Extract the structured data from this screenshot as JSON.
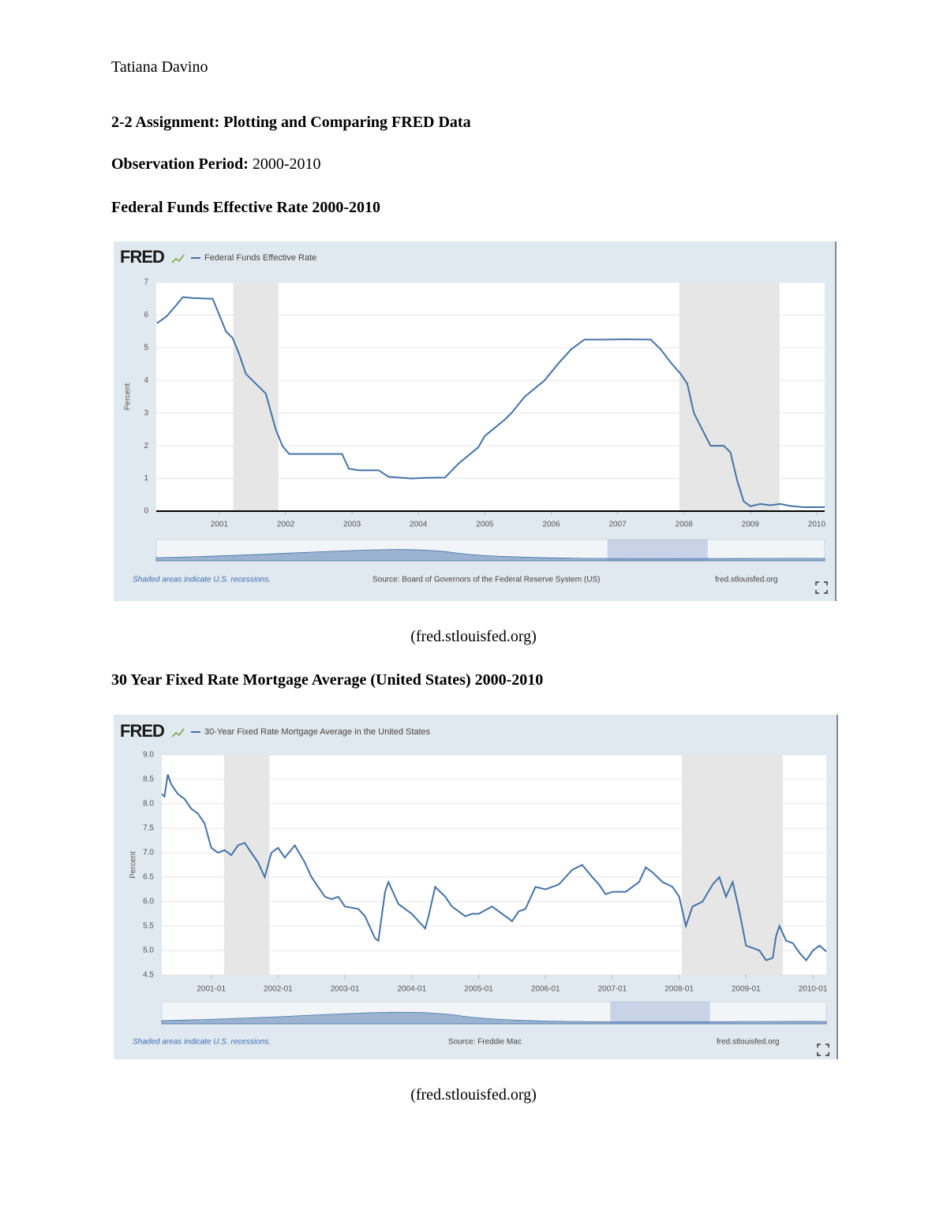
{
  "author": "Tatiana Davino",
  "title": "2-2 Assignment: Plotting and Comparing FRED Data",
  "observation": {
    "label": "Observation Period:",
    "value": "2000-2010"
  },
  "sections": [
    {
      "heading": "Federal Funds Effective Rate 2000-2010",
      "caption": "(fred.stlouisfed.org)"
    },
    {
      "heading": "30 Year Fixed Rate Mortgage Average (United States) 2000-2010",
      "caption": "(fred.stlouisfed.org)"
    }
  ],
  "chart_data": [
    {
      "type": "line",
      "logo": "FRED",
      "ylabel": "Percent",
      "note": "Shaded areas indicate U.S. recessions.",
      "source": "Source: Board of Governors of the Federal Reserve System (US)",
      "site": "fred.stlouisfed.org",
      "zero_line": true,
      "grid": true,
      "xlim": [
        2000.05,
        2010.12
      ],
      "ylim": [
        0,
        7
      ],
      "xticks": [
        2001,
        2002,
        2003,
        2004,
        2005,
        2006,
        2007,
        2008,
        2009,
        2010
      ],
      "yticks": [
        0,
        1,
        2,
        3,
        4,
        5,
        6,
        7
      ],
      "recessions": [
        [
          2001.21,
          2001.89
        ],
        [
          2007.93,
          2009.44
        ]
      ],
      "x": [
        2000.06,
        2000.2,
        2000.35,
        2000.45,
        2000.6,
        2000.9,
        2001.0,
        2001.1,
        2001.2,
        2001.3,
        2001.4,
        2001.6,
        2001.7,
        2001.85,
        2001.95,
        2002.05,
        2002.4,
        2002.7,
        2002.85,
        2002.95,
        2003.1,
        2003.4,
        2003.55,
        2003.9,
        2004.1,
        2004.4,
        2004.6,
        2004.9,
        2005.0,
        2005.3,
        2005.4,
        2005.6,
        2005.9,
        2006.1,
        2006.3,
        2006.5,
        2006.8,
        2007.1,
        2007.5,
        2007.65,
        2007.8,
        2007.95,
        2008.05,
        2008.15,
        2008.3,
        2008.4,
        2008.6,
        2008.7,
        2008.8,
        2008.9,
        2009.0,
        2009.15,
        2009.3,
        2009.45,
        2009.6,
        2009.8,
        2010.12
      ],
      "series": [
        {
          "name": "Federal Funds Effective Rate",
          "color": "#4572a7",
          "values": [
            5.75,
            5.95,
            6.3,
            6.55,
            6.52,
            6.5,
            6.0,
            5.5,
            5.3,
            4.8,
            4.2,
            3.8,
            3.6,
            2.5,
            2.0,
            1.75,
            1.75,
            1.75,
            1.75,
            1.3,
            1.25,
            1.25,
            1.05,
            1.0,
            1.02,
            1.03,
            1.45,
            1.95,
            2.3,
            2.8,
            3.0,
            3.5,
            4.0,
            4.5,
            4.95,
            5.25,
            5.25,
            5.26,
            5.25,
            4.95,
            4.55,
            4.2,
            3.9,
            3.0,
            2.4,
            2.0,
            2.0,
            1.8,
            0.95,
            0.3,
            0.15,
            0.22,
            0.18,
            0.22,
            0.16,
            0.12,
            0.12
          ]
        }
      ]
    },
    {
      "type": "line",
      "logo": "FRED",
      "ylabel": "Percent",
      "note": "Shaded areas indicate U.S. recessions.",
      "source": "Source: Freddie Mac",
      "site": "fred.stlouisfed.org",
      "zero_line": false,
      "grid": true,
      "xlim": [
        2000.26,
        2010.2
      ],
      "ylim": [
        4.5,
        9
      ],
      "xticks": [
        {
          "value": 2001,
          "label": "2001-01"
        },
        {
          "value": 2002,
          "label": "2002-01"
        },
        {
          "value": 2003,
          "label": "2003-01"
        },
        {
          "value": 2004,
          "label": "2004-01"
        },
        {
          "value": 2005,
          "label": "2005-01"
        },
        {
          "value": 2006,
          "label": "2006-01"
        },
        {
          "value": 2007,
          "label": "2007-01"
        },
        {
          "value": 2008,
          "label": "2008-01"
        },
        {
          "value": 2009,
          "label": "2009-01"
        },
        {
          "value": 2010,
          "label": "2010-01"
        }
      ],
      "yticks": [
        4.5,
        {
          "value": 5,
          "label": "5.0"
        },
        5.5,
        {
          "value": 6,
          "label": "6.0"
        },
        6.5,
        {
          "value": 7,
          "label": "7.0"
        },
        7.5,
        {
          "value": 8,
          "label": "8.0"
        },
        8.5,
        {
          "value": 9,
          "label": "9.0"
        }
      ],
      "recessions": [
        [
          2001.19,
          2001.87
        ],
        [
          2008.04,
          2009.55
        ]
      ],
      "x": [
        2000.26,
        2000.3,
        2000.35,
        2000.4,
        2000.5,
        2000.6,
        2000.7,
        2000.8,
        2000.9,
        2001.0,
        2001.1,
        2001.2,
        2001.3,
        2001.4,
        2001.5,
        2001.6,
        2001.7,
        2001.8,
        2001.9,
        2002.0,
        2002.1,
        2002.25,
        2002.4,
        2002.5,
        2002.6,
        2002.7,
        2002.8,
        2002.9,
        2003.0,
        2003.2,
        2003.3,
        2003.45,
        2003.5,
        2003.6,
        2003.65,
        2003.8,
        2003.9,
        2004.0,
        2004.2,
        2004.25,
        2004.35,
        2004.5,
        2004.6,
        2004.8,
        2004.9,
        2005.0,
        2005.2,
        2005.4,
        2005.5,
        2005.6,
        2005.7,
        2005.85,
        2006.0,
        2006.2,
        2006.4,
        2006.55,
        2006.7,
        2006.8,
        2006.9,
        2007.0,
        2007.2,
        2007.4,
        2007.5,
        2007.6,
        2007.75,
        2007.9,
        2008.0,
        2008.1,
        2008.2,
        2008.35,
        2008.5,
        2008.6,
        2008.7,
        2008.8,
        2008.9,
        2009.0,
        2009.2,
        2009.3,
        2009.4,
        2009.45,
        2009.5,
        2009.6,
        2009.7,
        2009.8,
        2009.9,
        2010.0,
        2010.1,
        2010.2
      ],
      "series": [
        {
          "name": "30-Year Fixed Rate Mortgage Average in the United States",
          "color": "#4572a7",
          "values": [
            8.2,
            8.15,
            8.6,
            8.4,
            8.2,
            8.1,
            7.9,
            7.8,
            7.6,
            7.1,
            7.0,
            7.05,
            6.95,
            7.15,
            7.2,
            7.0,
            6.8,
            6.5,
            7.0,
            7.1,
            6.9,
            7.15,
            6.8,
            6.5,
            6.3,
            6.1,
            6.05,
            6.1,
            5.9,
            5.85,
            5.7,
            5.25,
            5.2,
            6.2,
            6.4,
            5.95,
            5.85,
            5.75,
            5.45,
            5.7,
            6.3,
            6.1,
            5.9,
            5.7,
            5.75,
            5.75,
            5.9,
            5.7,
            5.6,
            5.8,
            5.85,
            6.3,
            6.25,
            6.35,
            6.65,
            6.75,
            6.5,
            6.35,
            6.15,
            6.2,
            6.2,
            6.4,
            6.7,
            6.6,
            6.4,
            6.3,
            6.1,
            5.5,
            5.9,
            6.0,
            6.35,
            6.5,
            6.1,
            6.4,
            5.8,
            5.1,
            5.0,
            4.8,
            4.85,
            5.3,
            5.5,
            5.2,
            5.15,
            4.95,
            4.8,
            5.0,
            5.1,
            4.98
          ]
        }
      ]
    }
  ]
}
